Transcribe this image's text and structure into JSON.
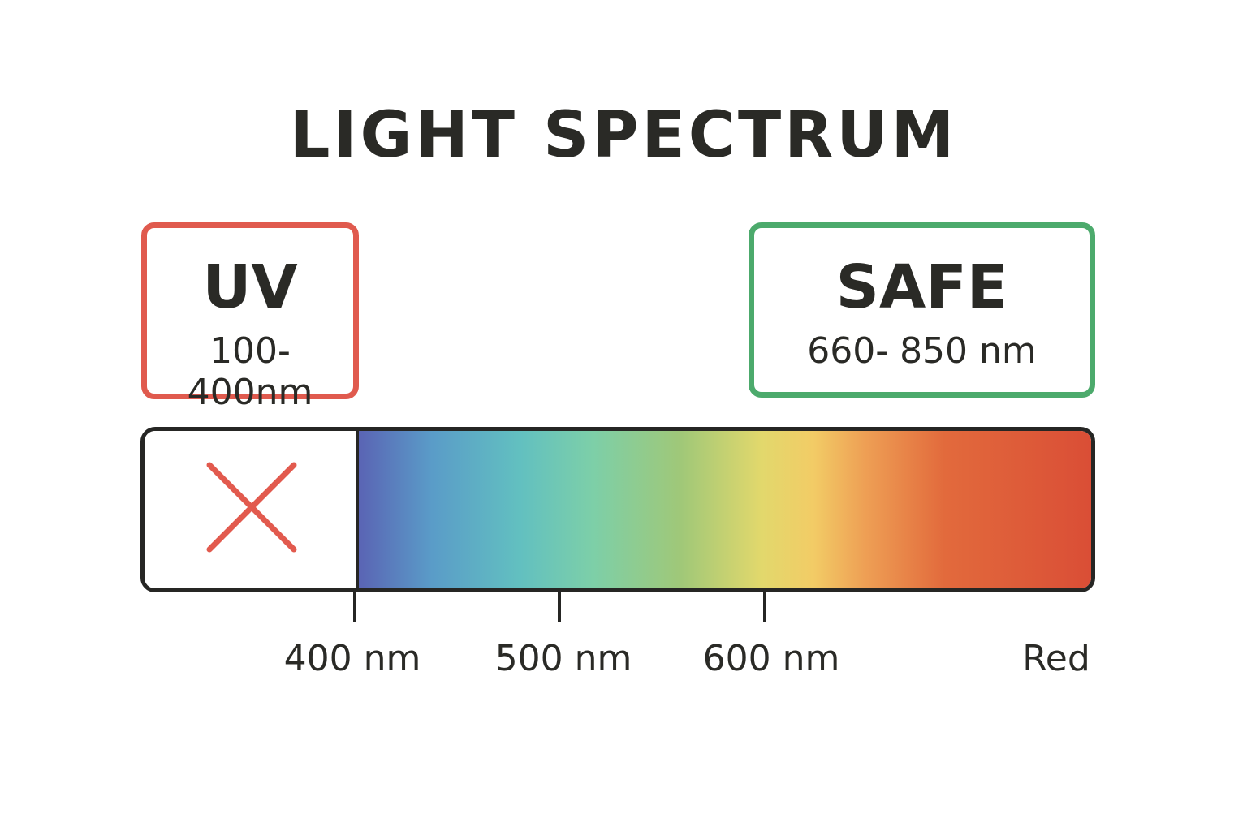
{
  "title": "LIGHT SPECTRUM",
  "uv_box": {
    "label": "UV",
    "range": "100-400nm",
    "border_color": "#e05a4e"
  },
  "safe_box": {
    "label": "SAFE",
    "range": "660- 850 nm",
    "border_color": "#4caa6c"
  },
  "spectrum_bar": {
    "excluded_zone_icon": "x-mark-icon",
    "x_color": "#e25a4e",
    "colors": [
      "#5a64b4",
      "#5a9cc8",
      "#62c0c0",
      "#7dcfa8",
      "#a0c878",
      "#e2d86c",
      "#f2cc66",
      "#eea055",
      "#e26a3c",
      "#da4e36"
    ]
  },
  "axis": {
    "ticks": [
      {
        "label": "400 nm"
      },
      {
        "label": "500 nm"
      },
      {
        "label": "600 nm"
      }
    ],
    "end_label": "Red"
  }
}
